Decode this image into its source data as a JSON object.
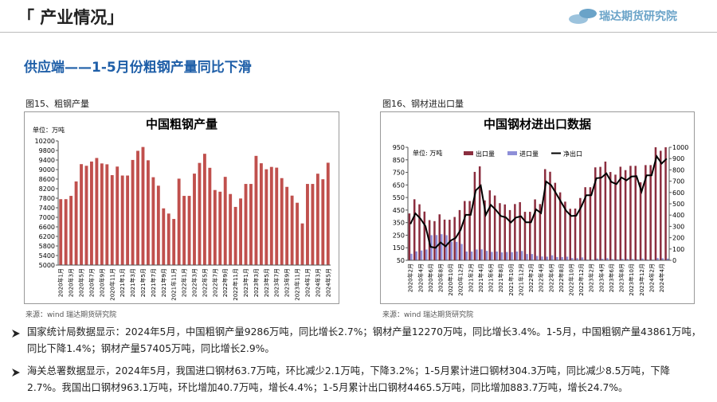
{
  "header": {
    "title": "「 产业情况」",
    "logo": "瑞达期货研究院"
  },
  "subtitle": "供应端——1-5月份粗钢产量同比下滑",
  "chart_data": [
    {
      "type": "bar",
      "figure_label": "图15、粗钢产量",
      "title": "中国粗钢产量",
      "unit": "单位：万吨",
      "source": "来源：wind   瑞达期货研究院",
      "categories": [
        "2020年1月",
        null,
        "2020年3月",
        null,
        "2020年5月",
        null,
        "2020年7月",
        null,
        "2020年9月",
        null,
        "2020年11月",
        null,
        "2021年1月",
        null,
        "2021年3月",
        null,
        "2021年5月",
        null,
        "2021年7月",
        null,
        "2021年9月",
        null,
        "2021年11月",
        null,
        "2022年1月",
        null,
        "2022年3月",
        null,
        "2022年5月",
        null,
        "2022年7月",
        null,
        "2022年9月",
        null,
        "2022年11月",
        null,
        "2023年1月",
        null,
        "2023年3月",
        null,
        "2023年5月",
        null,
        "2023年7月",
        null,
        "2023年9月",
        null,
        "2023年11月",
        null,
        "2024年1月",
        null,
        "2024年3月",
        null,
        "2024年5月"
      ],
      "values": [
        7760,
        7760,
        7898,
        8503,
        9227,
        9158,
        9336,
        9485,
        9256,
        9220,
        8766,
        9125,
        8750,
        8750,
        9402,
        9785,
        9945,
        9388,
        8679,
        8324,
        7375,
        7158,
        6931,
        8619,
        7898,
        7898,
        8830,
        9278,
        9661,
        9073,
        8143,
        8073,
        8695,
        7976,
        7436,
        7789,
        8398,
        8398,
        9573,
        9264,
        9012,
        9111,
        9080,
        8641,
        8275,
        7909,
        7610,
        6744,
        8398,
        8398,
        8827,
        8594,
        9286
      ],
      "color": "#c0504d",
      "ylim": [
        5000,
        10200
      ],
      "yticks": [
        5000,
        5400,
        5800,
        6200,
        6600,
        7000,
        7400,
        7800,
        8200,
        8600,
        9000,
        9400,
        9800,
        10200
      ],
      "grid": false
    },
    {
      "type": "bar_line",
      "figure_label": "图16、钢材进出口量",
      "title": "中国钢材进出口数据",
      "unit": "单位: 万吨",
      "source": "来源：wind   瑞达期货研究院",
      "categories": [
        "2020年2月",
        null,
        "2020年4月",
        null,
        "2020年6月",
        null,
        "2020年8月",
        null,
        "2020年10月",
        null,
        "2020年12月",
        null,
        "2021年2月",
        null,
        "2021年4月",
        null,
        "2021年6月",
        null,
        "2021年8月",
        null,
        "2021年10月",
        null,
        "2021年12月",
        null,
        "2022年2月",
        null,
        "2022年4月",
        null,
        "2022年6月",
        null,
        "2022年8月",
        null,
        "2022年10月",
        null,
        "2022年12月",
        null,
        "2023年2月",
        null,
        "2023年4月",
        null,
        "2023年6月",
        null,
        "2023年8月",
        null,
        "2023年10月",
        null,
        "2023年12月",
        null,
        "2024年2月",
        null,
        "2024年4月",
        null
      ],
      "series": [
        {
          "name": "出口量",
          "kind": "bar",
          "color": "#8b2e3f",
          "values": [
            423,
            536,
            496,
            438,
            370,
            362,
            416,
            374,
            373,
            395,
            450,
            522,
            522,
            754,
            798,
            527,
            607,
            566,
            505,
            495,
            450,
            498,
            513,
            436,
            436,
            535,
            498,
            776,
            755,
            667,
            591,
            517,
            460,
            462,
            546,
            632,
            632,
            790,
            794,
            836,
            753,
            732,
            795,
            768,
            802,
            802,
            671,
            808,
            808,
            989,
            922,
            963
          ]
        },
        {
          "name": "进口量",
          "kind": "bar",
          "color": "#8e8fd8",
          "values": [
            102,
            121,
            128,
            136,
            250,
            251,
            258,
            250,
            199,
            197,
            180,
            120,
            120,
            136,
            137,
            125,
            117,
            120,
            113,
            116,
            115,
            120,
            124,
            100,
            100,
            85,
            80,
            79,
            90,
            76,
            76,
            79,
            68,
            67,
            73,
            56,
            56,
            64,
            63,
            67,
            60,
            58,
            62,
            61,
            61,
            58,
            64,
            56,
            56,
            68,
            66,
            64
          ]
        },
        {
          "name": "净出口",
          "kind": "line",
          "axis": "y2",
          "color": "#000000",
          "values": [
            321,
            415,
            368,
            302,
            120,
            111,
            158,
            124,
            174,
            198,
            270,
            402,
            402,
            618,
            661,
            402,
            490,
            446,
            392,
            379,
            335,
            378,
            389,
            336,
            336,
            450,
            418,
            697,
            665,
            591,
            515,
            438,
            392,
            395,
            473,
            576,
            576,
            726,
            731,
            769,
            693,
            674,
            733,
            707,
            741,
            744,
            607,
            752,
            752,
            921,
            856,
            899
          ]
        }
      ],
      "ylim": [
        50,
        950
      ],
      "yticks": [
        50,
        150,
        250,
        350,
        450,
        550,
        650,
        750,
        850,
        950
      ],
      "y2lim": [
        0,
        1000
      ],
      "y2ticks": [
        0,
        100,
        200,
        300,
        400,
        500,
        600,
        700,
        800,
        900,
        1000
      ],
      "grid": false
    }
  ],
  "bullets": [
    "国家统计局数据显示：2024年5月，中国粗钢产量9286万吨，同比增长2.7%；钢材产量12270万吨，同比增长3.4%。1-5月，中国粗钢产量43861万吨，同比下降1.4%；钢材产量57405万吨，同比增长2.9%。",
    "海关总署数据显示，2024年5月，我国进口钢材63.7万吨，环比减少2.1万吨，下降3.2%；1-5月累计进口钢材304.3万吨，同比减少8.5万吨，下降2.7%。我国出口钢材963.1万吨，环比增加40.7万吨，增长4.4%；1-5月累计出口钢材4465.5万吨，同比增加883.7万吨，增长24.7%。"
  ]
}
